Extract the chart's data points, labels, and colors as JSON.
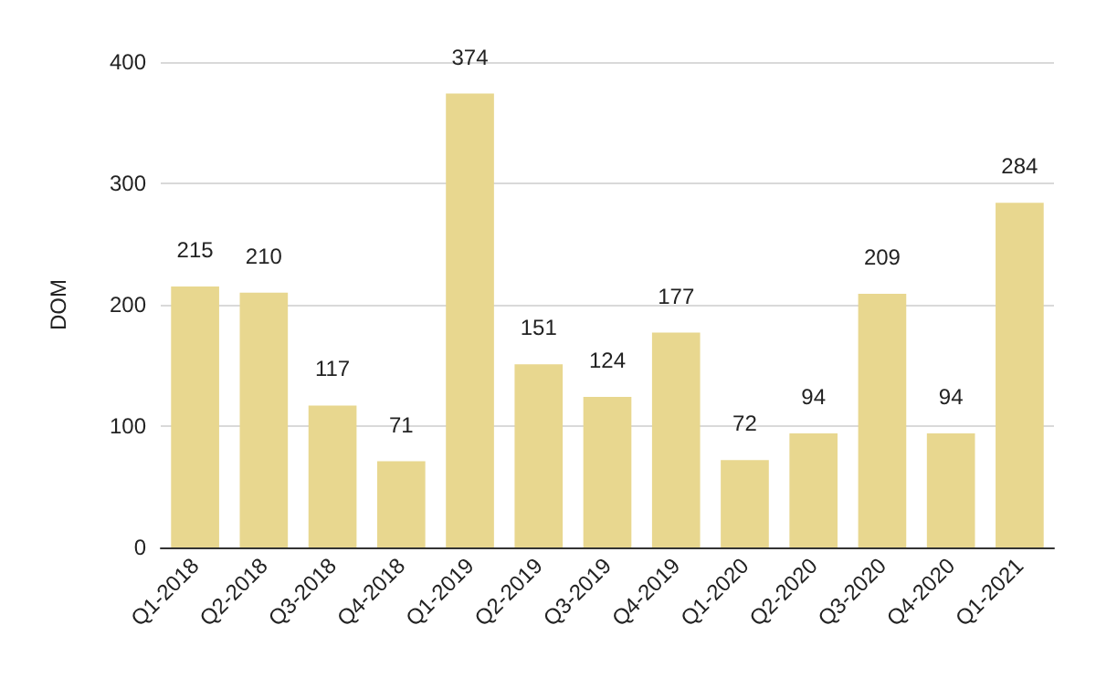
{
  "chart_data": {
    "type": "bar",
    "ylabel": "DOM",
    "categories": [
      "Q1-2018",
      "Q2-2018",
      "Q3-2018",
      "Q4-2018",
      "Q1-2019",
      "Q2-2019",
      "Q3-2019",
      "Q4-2019",
      "Q1-2020",
      "Q2-2020",
      "Q3-2020",
      "Q4-2020",
      "Q1-2021"
    ],
    "values": [
      215,
      210,
      117,
      71,
      374,
      151,
      124,
      177,
      72,
      94,
      209,
      94,
      284
    ],
    "color": "#e8d78f",
    "ylim": [
      0,
      400
    ],
    "yticks": [
      0,
      100,
      200,
      300,
      400
    ],
    "grid": "y",
    "data_labels": true
  }
}
